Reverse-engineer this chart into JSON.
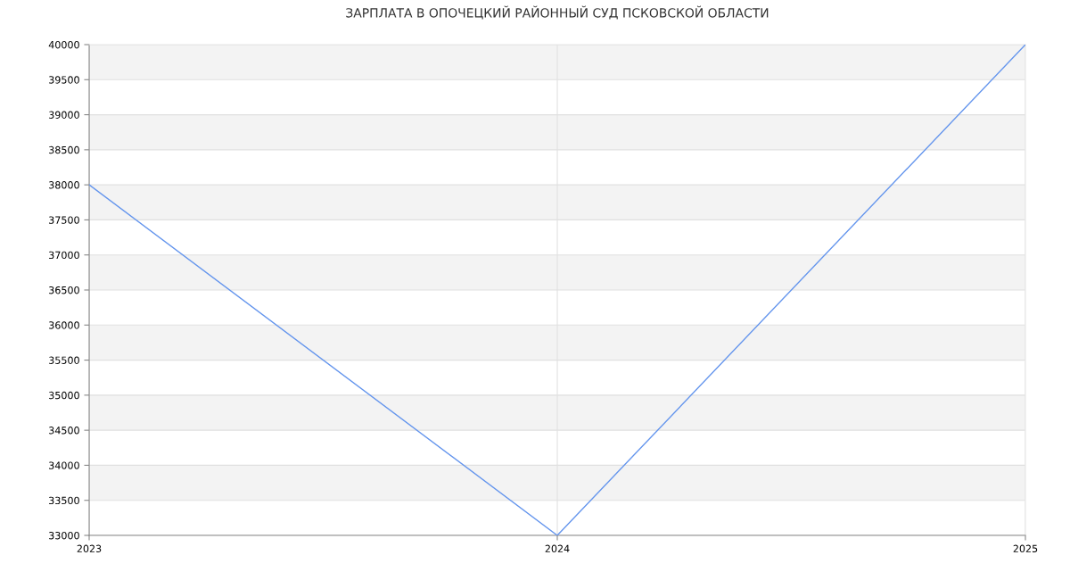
{
  "chart_data": {
    "type": "line",
    "title": "ЗАРПЛАТА В ОПОЧЕЦКИЙ РАЙОННЫЙ СУД ПСКОВСКОЙ ОБЛАСТИ",
    "x": [
      2023,
      2024,
      2025
    ],
    "series": [
      {
        "color": "#6495ed",
        "values": [
          38000,
          33000,
          40000
        ]
      }
    ],
    "xlim": [
      2023,
      2025
    ],
    "xticks": [
      2023,
      2024,
      2025
    ],
    "ylim": [
      33000,
      40000
    ],
    "yticks": [
      33000,
      33500,
      34000,
      34500,
      35000,
      35500,
      36000,
      36500,
      37000,
      37500,
      38000,
      38500,
      39000,
      39500,
      40000
    ],
    "grid": true,
    "marker": "none",
    "line_style": "solid"
  }
}
